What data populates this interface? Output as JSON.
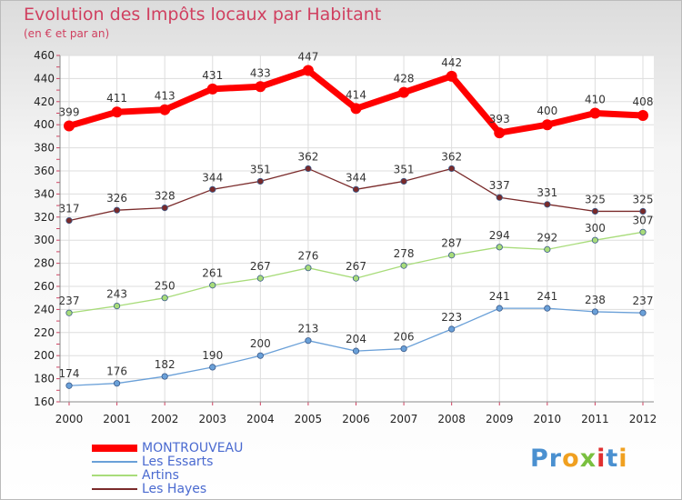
{
  "title": "Evolution des Impôts locaux par Habitant",
  "subtitle": "(en € et par an)",
  "logo": "Proxiti",
  "chart_data": {
    "type": "line",
    "title": "Evolution des Impôts locaux par Habitant",
    "ylabel": "(en € et par an)",
    "ylim": [
      160,
      460
    ],
    "yticks": [
      160,
      180,
      200,
      220,
      240,
      260,
      280,
      300,
      320,
      340,
      360,
      380,
      400,
      420,
      440,
      460
    ],
    "x": [
      "2000",
      "2001",
      "2002",
      "2003",
      "2004",
      "2005",
      "2006",
      "2007",
      "2008",
      "2009",
      "2010",
      "2011",
      "2012"
    ],
    "grid": true,
    "series": [
      {
        "name": "MONTROUVEAU",
        "color": "#ff0000",
        "values": [
          399,
          411,
          413,
          431,
          433,
          447,
          414,
          428,
          442,
          393,
          400,
          410,
          408
        ]
      },
      {
        "name": "Les Essarts",
        "color": "#6aa0d8",
        "values": [
          174,
          176,
          182,
          190,
          200,
          213,
          204,
          206,
          223,
          241,
          241,
          238,
          237
        ]
      },
      {
        "name": "Artins",
        "color": "#a8dc7a",
        "values": [
          237,
          243,
          250,
          261,
          267,
          276,
          267,
          278,
          287,
          294,
          292,
          300,
          307
        ]
      },
      {
        "name": "Les Hayes",
        "color": "#7a2a2a",
        "values": [
          317,
          326,
          328,
          344,
          351,
          362,
          344,
          351,
          362,
          337,
          331,
          325,
          325
        ]
      }
    ]
  }
}
